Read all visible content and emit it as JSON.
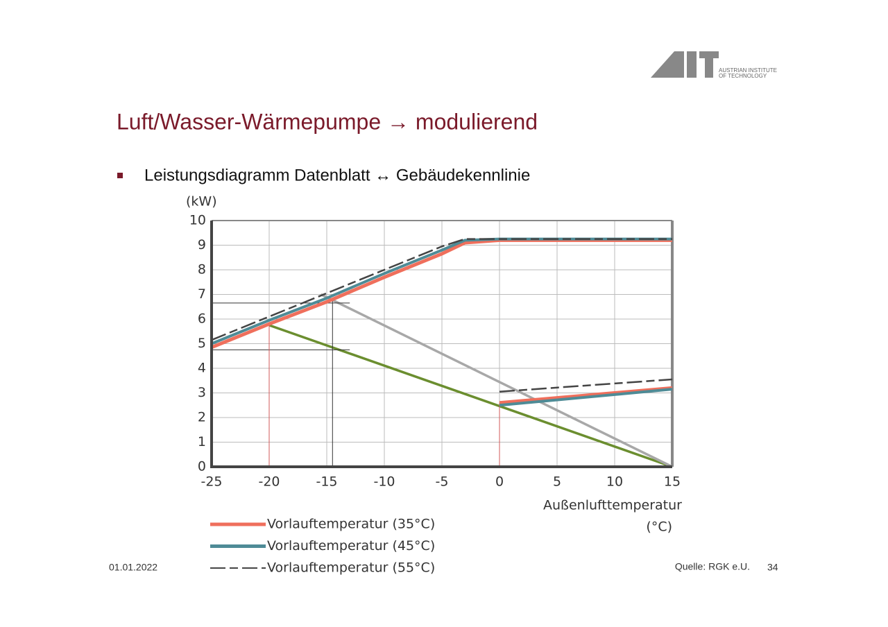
{
  "header": {
    "logo": "AIT",
    "logo_subtitle": [
      "AUSTRIAN INSTITUTE",
      "OF TECHNOLOGY"
    ],
    "title": "Luft/Wasser-Wärmepumpe → modulierend",
    "bullet": "Leistungsdiagramm Datenblatt ↔ Gebäudekennlinie"
  },
  "chart_data": {
    "type": "line",
    "ylabel": "(kW)",
    "xlabel": [
      "Außenlufttemperatur",
      "(°C)"
    ],
    "xlim": [
      -25,
      15
    ],
    "xticks": [
      -25,
      -20,
      -15,
      -10,
      -5,
      0,
      5,
      10,
      15
    ],
    "ylim": [
      0,
      10
    ],
    "yticks": [
      0,
      1,
      2,
      3,
      4,
      5,
      6,
      7,
      8,
      9,
      10
    ],
    "grid": true,
    "series": [
      {
        "name": "Vorlauftemperatur (35°C)",
        "color": "#ef6f5c",
        "width": 5,
        "dash": false,
        "x": [
          -25,
          -20,
          -15,
          -10,
          -5,
          -3,
          0,
          15,
          null,
          0,
          15
        ],
        "values": [
          4.85,
          5.8,
          6.7,
          7.7,
          8.65,
          9.1,
          9.2,
          9.2,
          null,
          2.6,
          3.2
        ]
      },
      {
        "name": "Vorlauftemperatur (45°C)",
        "color": "#4e8b96",
        "width": 4,
        "dash": false,
        "x": [
          -25,
          -20,
          -15,
          -10,
          -5,
          -3,
          0,
          15,
          null,
          0,
          15
        ],
        "values": [
          5.0,
          5.95,
          6.85,
          7.85,
          8.8,
          9.2,
          9.25,
          9.25,
          null,
          2.5,
          3.15
        ]
      },
      {
        "name": "Vorlauftemperatur (55°C)",
        "color": "#444444",
        "width": 2.5,
        "dash": true,
        "x": [
          -25,
          -20,
          -15,
          -10,
          -5,
          -3,
          0,
          15,
          null,
          0,
          15
        ],
        "values": [
          5.15,
          6.1,
          7.05,
          8.0,
          8.95,
          9.25,
          9.25,
          9.25,
          null,
          3.05,
          3.55
        ]
      }
    ],
    "reference_lines": [
      {
        "color": "#6b8e2f",
        "width": 3.5,
        "x": [
          -20,
          15
        ],
        "values": [
          5.75,
          0
        ]
      },
      {
        "color": "#a8a8a8",
        "width": 3.5,
        "x": [
          -15.5,
          15
        ],
        "values": [
          7.0,
          0
        ]
      },
      {
        "color": "#333333",
        "width": 1,
        "x": [
          -25,
          -13
        ],
        "values": [
          6.65,
          6.65
        ]
      },
      {
        "color": "#333333",
        "width": 1,
        "x": [
          -25,
          -13
        ],
        "values": [
          4.75,
          4.75
        ]
      },
      {
        "color": "#333333",
        "width": 1,
        "x": [
          -14.5,
          -14.5
        ],
        "values": [
          0,
          6.75
        ]
      },
      {
        "color": "#d25a5a",
        "width": 1,
        "x": [
          -20,
          -20
        ],
        "values": [
          0,
          5.8
        ]
      },
      {
        "color": "#d25a5a",
        "width": 1,
        "x": [
          0,
          0
        ],
        "values": [
          0,
          2.6
        ]
      }
    ]
  },
  "footer": {
    "date": "01.01.2022",
    "source": "Quelle: RGK e.U.",
    "page": "34"
  }
}
